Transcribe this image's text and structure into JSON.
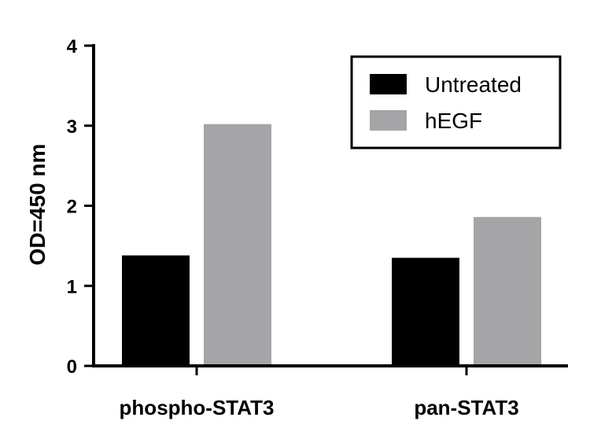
{
  "chart_data": {
    "type": "bar",
    "title": "",
    "xlabel": "",
    "ylabel": "OD=450 nm",
    "ylim": [
      0,
      4
    ],
    "yticks": [
      0,
      1,
      2,
      3,
      4
    ],
    "categories": [
      "phospho-STAT3",
      "pan-STAT3"
    ],
    "series": [
      {
        "name": "Untreated",
        "color": "#000000",
        "values": [
          1.38,
          1.35
        ]
      },
      {
        "name": "hEGF",
        "color": "#a5a5a7",
        "values": [
          3.02,
          1.86
        ]
      }
    ],
    "legend_position": "top-right",
    "grid": false
  }
}
